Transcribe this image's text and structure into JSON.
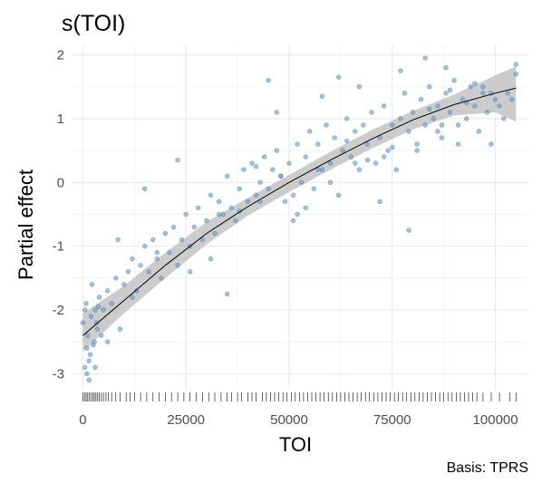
{
  "chart_data": {
    "type": "scatter",
    "title": "s(TOI)",
    "xlabel": "TOI",
    "ylabel": "Partial effect",
    "caption": "Basis: TPRS",
    "xlim": [
      -2500,
      108000
    ],
    "ylim": [
      -3.25,
      2.15
    ],
    "x_ticks": [
      0,
      25000,
      50000,
      75000,
      100000
    ],
    "x_tick_labels": [
      "0",
      "25000",
      "50000",
      "75000",
      "100000"
    ],
    "y_ticks": [
      -3,
      -2,
      -1,
      0,
      1,
      2
    ],
    "y_tick_labels": [
      "-3",
      "-2",
      "-1",
      "0",
      "1",
      "2"
    ],
    "grid": true,
    "colors": {
      "points": "#5b9bd5",
      "point_stroke": "#2f6fa8",
      "ribbon": "#bfbfbf",
      "smooth_line": "#000000",
      "grid": "#ebebeb",
      "rug": "#000000"
    },
    "smooth": {
      "x": [
        0,
        10000,
        20000,
        30000,
        40000,
        50000,
        60000,
        70000,
        80000,
        90000,
        100000,
        105000
      ],
      "fit": [
        -2.4,
        -1.85,
        -1.3,
        -0.8,
        -0.38,
        0.0,
        0.35,
        0.68,
        0.98,
        1.22,
        1.4,
        1.48
      ],
      "lower": [
        -2.65,
        -2.05,
        -1.5,
        -0.97,
        -0.52,
        -0.15,
        0.2,
        0.53,
        0.83,
        1.05,
        1.1,
        0.95
      ],
      "upper": [
        -2.05,
        -1.62,
        -1.1,
        -0.62,
        -0.24,
        0.12,
        0.48,
        0.82,
        1.12,
        1.38,
        1.68,
        1.82
      ]
    },
    "points": {
      "x": [
        0,
        500,
        800,
        1200,
        1500,
        2000,
        2500,
        3000,
        3500,
        4000,
        4500,
        5000,
        1000,
        1800,
        2200,
        2800,
        3300,
        3800,
        500,
        1000,
        1500,
        6000,
        7000,
        8000,
        9000,
        10000,
        11000,
        12000,
        13000,
        14000,
        15000,
        16000,
        17000,
        18000,
        19000,
        20000,
        21000,
        22000,
        23000,
        24000,
        25000,
        26000,
        27000,
        28000,
        29000,
        30000,
        31000,
        32000,
        33000,
        34000,
        35000,
        36000,
        37000,
        38000,
        39000,
        40000,
        41000,
        42000,
        43000,
        44000,
        45000,
        46000,
        47000,
        48000,
        49000,
        50000,
        51000,
        52000,
        53000,
        54000,
        55000,
        56000,
        57000,
        58000,
        59000,
        60000,
        61000,
        62000,
        63000,
        64000,
        65000,
        66000,
        67000,
        68000,
        69000,
        70000,
        71000,
        72000,
        73000,
        74000,
        75000,
        76000,
        77000,
        78000,
        79000,
        80000,
        81000,
        82000,
        83000,
        84000,
        85000,
        86000,
        87000,
        88000,
        89000,
        90000,
        91000,
        92000,
        93000,
        94000,
        95000,
        96000,
        97000,
        98000,
        99000,
        100000,
        101000,
        102000,
        103000,
        104000,
        105000,
        8500,
        15000,
        23000,
        31000,
        33000,
        35000,
        45000,
        47000,
        52000,
        58000,
        62000,
        67000,
        72000,
        77000,
        79000,
        83000,
        88000,
        95000,
        99000,
        105000,
        43000,
        48000,
        54000,
        60000,
        66000,
        73000,
        81000,
        86000,
        91000,
        3000,
        6000,
        12000,
        18000,
        26000,
        38000,
        42000,
        51000,
        57000,
        64000,
        69000,
        75000,
        84000,
        87000,
        89000,
        93000,
        97000
      ],
      "y": [
        -2.2,
        -2.9,
        -1.9,
        -2.4,
        -2.8,
        -2.1,
        -2.55,
        -2.0,
        -2.3,
        -1.8,
        -2.4,
        -2.0,
        -3.0,
        -2.7,
        -1.6,
        -2.5,
        -2.2,
        -1.95,
        -2.0,
        -2.6,
        -3.1,
        -1.7,
        -1.9,
        -1.5,
        -2.3,
        -1.6,
        -1.4,
        -1.2,
        -1.7,
        -1.3,
        -1.0,
        -1.4,
        -0.9,
        -1.2,
        -1.5,
        -0.8,
        -1.1,
        -0.7,
        -1.3,
        -0.9,
        -0.5,
        -1.0,
        -0.7,
        -0.4,
        -0.9,
        -0.6,
        -0.2,
        -0.8,
        -0.3,
        -0.5,
        0.1,
        -0.4,
        -0.6,
        -0.1,
        0.2,
        -0.3,
        0.3,
        -0.2,
        0.0,
        0.4,
        -0.1,
        0.2,
        0.5,
        0.1,
        -0.3,
        0.3,
        -0.2,
        0.6,
        0.0,
        0.4,
        0.8,
        -0.1,
        0.6,
        0.2,
        0.9,
        0.3,
        0.7,
        -0.2,
        0.5,
        1.0,
        0.4,
        0.8,
        0.2,
        0.9,
        0.6,
        1.1,
        0.3,
        0.7,
        1.2,
        0.5,
        0.9,
        0.2,
        1.0,
        1.4,
        0.8,
        1.1,
        0.6,
        1.3,
        0.9,
        1.5,
        1.0,
        1.2,
        0.7,
        1.4,
        1.1,
        1.6,
        0.9,
        1.3,
        1.0,
        1.5,
        1.2,
        0.8,
        1.4,
        1.1,
        0.6,
        1.3,
        1.2,
        1.0,
        1.4,
        1.3,
        1.7,
        -0.9,
        -0.1,
        0.35,
        -1.2,
        -0.5,
        -1.75,
        1.6,
        1.1,
        -0.5,
        1.35,
        1.65,
        1.5,
        -0.3,
        1.75,
        -0.75,
        1.95,
        1.8,
        1.55,
        1.4,
        1.85,
        -0.3,
        0.1,
        -0.4,
        0.0,
        0.3,
        0.4,
        0.5,
        0.8,
        0.6,
        -2.9,
        -2.5,
        -1.8,
        -1.1,
        -1.4,
        -0.45,
        0.25,
        -0.6,
        0.2,
        0.65,
        0.35,
        0.55,
        1.15,
        0.9,
        1.45,
        1.25,
        1.5
      ]
    },
    "rug_x": [
      0,
      400,
      800,
      1200,
      1600,
      2000,
      2400,
      2800,
      3200,
      3600,
      4000,
      4500,
      5000,
      5600,
      6200,
      7000,
      8000,
      9000,
      10500,
      11500,
      12500,
      14000,
      15500,
      17000,
      18500,
      20000,
      21500,
      23000,
      24500,
      26000,
      27500,
      29000,
      30500,
      32000,
      33500,
      35000,
      36000,
      37500,
      38500,
      40000,
      41000,
      42000,
      43500,
      44500,
      45500,
      46500,
      47500,
      48500,
      49500,
      50500,
      51500,
      52500,
      53500,
      54500,
      55500,
      56500,
      57500,
      58500,
      59500,
      60500,
      61500,
      62500,
      63500,
      64500,
      65500,
      66500,
      67500,
      68500,
      69500,
      70500,
      71500,
      72500,
      73500,
      74500,
      75500,
      76500,
      77500,
      78500,
      79500,
      80500,
      81500,
      82500,
      83500,
      84500,
      85500,
      86500,
      87500,
      88500,
      89500,
      90500,
      91500,
      92500,
      93500,
      94500,
      95500,
      97000,
      99000,
      101000,
      103500,
      105000
    ]
  }
}
